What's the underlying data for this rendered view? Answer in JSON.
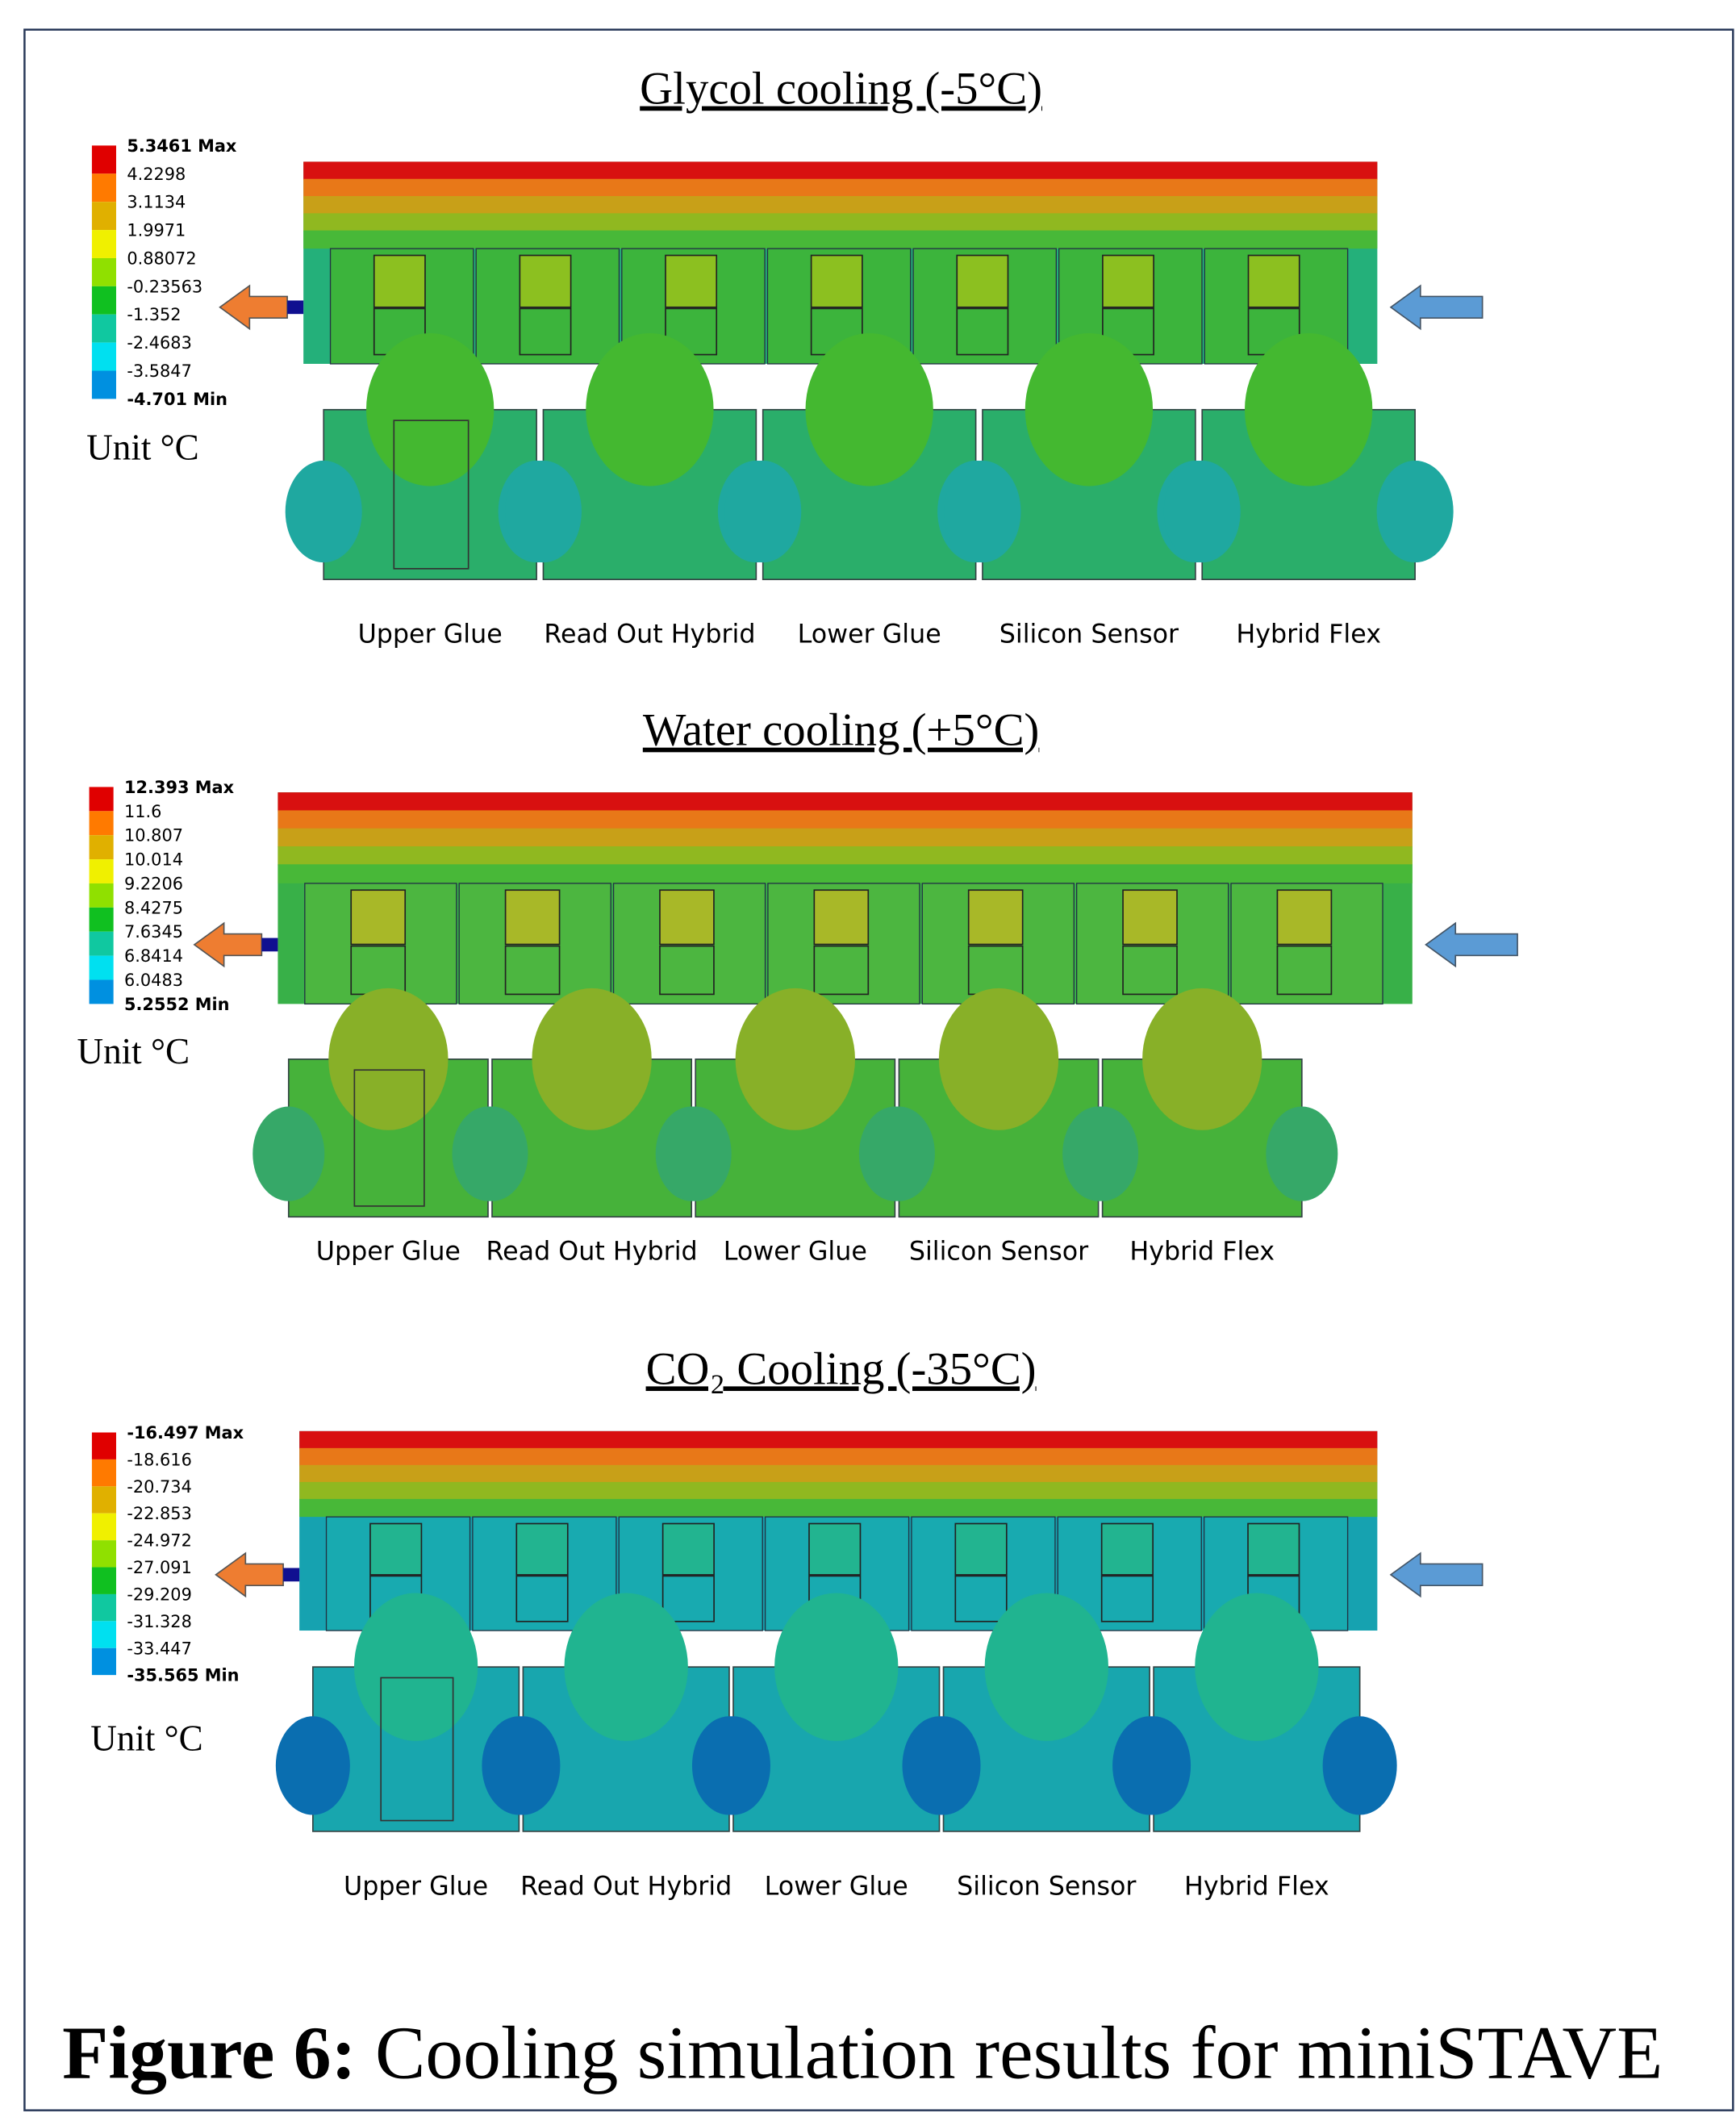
{
  "panels": [
    {
      "title": "Glycol cooling (-5°C)",
      "legend": [
        "5.3461 Max",
        "4.2298",
        "3.1134",
        "1.9971",
        "0.88072",
        "-0.23563",
        "-1.352",
        "-2.4683",
        "-3.5847",
        "-4.701 Min"
      ],
      "unit": "Unit °C",
      "parts": [
        "Upper Glue",
        "Read Out Hybrid",
        "Lower Glue",
        "Silicon Sensor",
        "Hybrid Flex"
      ]
    },
    {
      "title": "Water cooling (+5°C)",
      "legend": [
        "12.393 Max",
        "11.6",
        "10.807",
        "10.014",
        "9.2206",
        "8.4275",
        "7.6345",
        "6.8414",
        "6.0483",
        "5.2552 Min"
      ],
      "unit": "Unit °C",
      "parts": [
        "Upper Glue",
        "Read Out Hybrid",
        "Lower Glue",
        "Silicon Sensor",
        "Hybrid Flex"
      ]
    },
    {
      "title": "CO₂ Cooling (-35°C)",
      "legend": [
        "-16.497 Max",
        "-18.616",
        "-20.734",
        "-22.853",
        "-24.972",
        "-27.091",
        "-29.209",
        "-31.328",
        "-33.447",
        "-35.565 Min"
      ],
      "unit": "Unit °C",
      "parts": [
        "Upper Glue",
        "Read Out Hybrid",
        "Lower Glue",
        "Silicon Sensor",
        "Hybrid Flex"
      ]
    }
  ],
  "caption": {
    "label": "Figure 6:",
    "text": " Cooling simulation results for miniSTAVE"
  }
}
